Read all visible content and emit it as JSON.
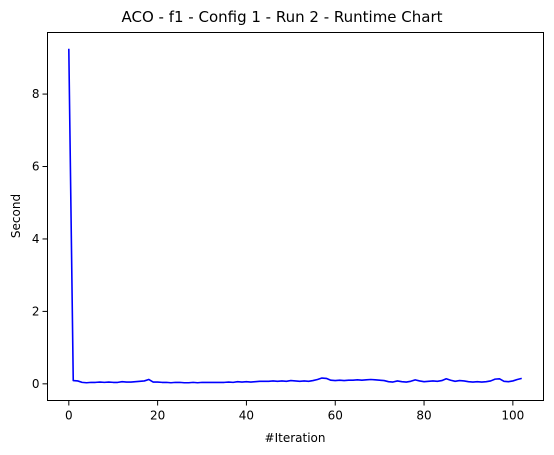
{
  "chart_data": {
    "type": "line",
    "title": "ACO - f1 - Config 1 - Run 2 - Runtime Chart",
    "xlabel": "#Iteration",
    "ylabel": "Second",
    "xlim": [
      -4.8,
      106.9
    ],
    "ylim": [
      -0.46,
      9.7
    ],
    "xticks": [
      0,
      20,
      40,
      60,
      80,
      100
    ],
    "yticks": [
      0,
      2,
      4,
      6,
      8
    ],
    "grid": false,
    "series": [
      {
        "color": "#0000ff",
        "x": [
          0,
          1,
          2,
          3,
          4,
          5,
          6,
          7,
          8,
          9,
          10,
          11,
          12,
          13,
          14,
          15,
          16,
          17,
          18,
          19,
          20,
          21,
          22,
          23,
          24,
          25,
          26,
          27,
          28,
          29,
          30,
          31,
          32,
          33,
          34,
          35,
          36,
          37,
          38,
          39,
          40,
          41,
          42,
          43,
          44,
          45,
          46,
          47,
          48,
          49,
          50,
          51,
          52,
          53,
          54,
          55,
          56,
          57,
          58,
          59,
          60,
          61,
          62,
          63,
          64,
          65,
          66,
          67,
          68,
          69,
          70,
          71,
          72,
          73,
          74,
          75,
          76,
          77,
          78,
          79,
          80,
          81,
          82,
          83,
          84,
          85,
          86,
          87,
          88,
          89,
          90,
          91,
          92,
          93,
          94,
          95,
          96,
          97,
          98,
          99,
          100,
          101,
          102
        ],
        "y": [
          9.25,
          0.09,
          0.08,
          0.04,
          0.03,
          0.04,
          0.04,
          0.05,
          0.04,
          0.05,
          0.04,
          0.04,
          0.06,
          0.05,
          0.05,
          0.06,
          0.07,
          0.08,
          0.12,
          0.05,
          0.05,
          0.04,
          0.04,
          0.03,
          0.04,
          0.04,
          0.03,
          0.03,
          0.04,
          0.03,
          0.04,
          0.04,
          0.04,
          0.04,
          0.04,
          0.04,
          0.05,
          0.04,
          0.06,
          0.05,
          0.06,
          0.05,
          0.06,
          0.07,
          0.07,
          0.07,
          0.08,
          0.07,
          0.08,
          0.07,
          0.09,
          0.08,
          0.07,
          0.08,
          0.07,
          0.09,
          0.12,
          0.16,
          0.15,
          0.1,
          0.09,
          0.1,
          0.09,
          0.1,
          0.1,
          0.11,
          0.1,
          0.11,
          0.12,
          0.11,
          0.1,
          0.09,
          0.06,
          0.05,
          0.08,
          0.06,
          0.05,
          0.07,
          0.11,
          0.08,
          0.06,
          0.07,
          0.08,
          0.07,
          0.09,
          0.14,
          0.1,
          0.07,
          0.09,
          0.08,
          0.06,
          0.05,
          0.06,
          0.05,
          0.06,
          0.08,
          0.13,
          0.14,
          0.07,
          0.06,
          0.08,
          0.12,
          0.15
        ]
      }
    ]
  }
}
